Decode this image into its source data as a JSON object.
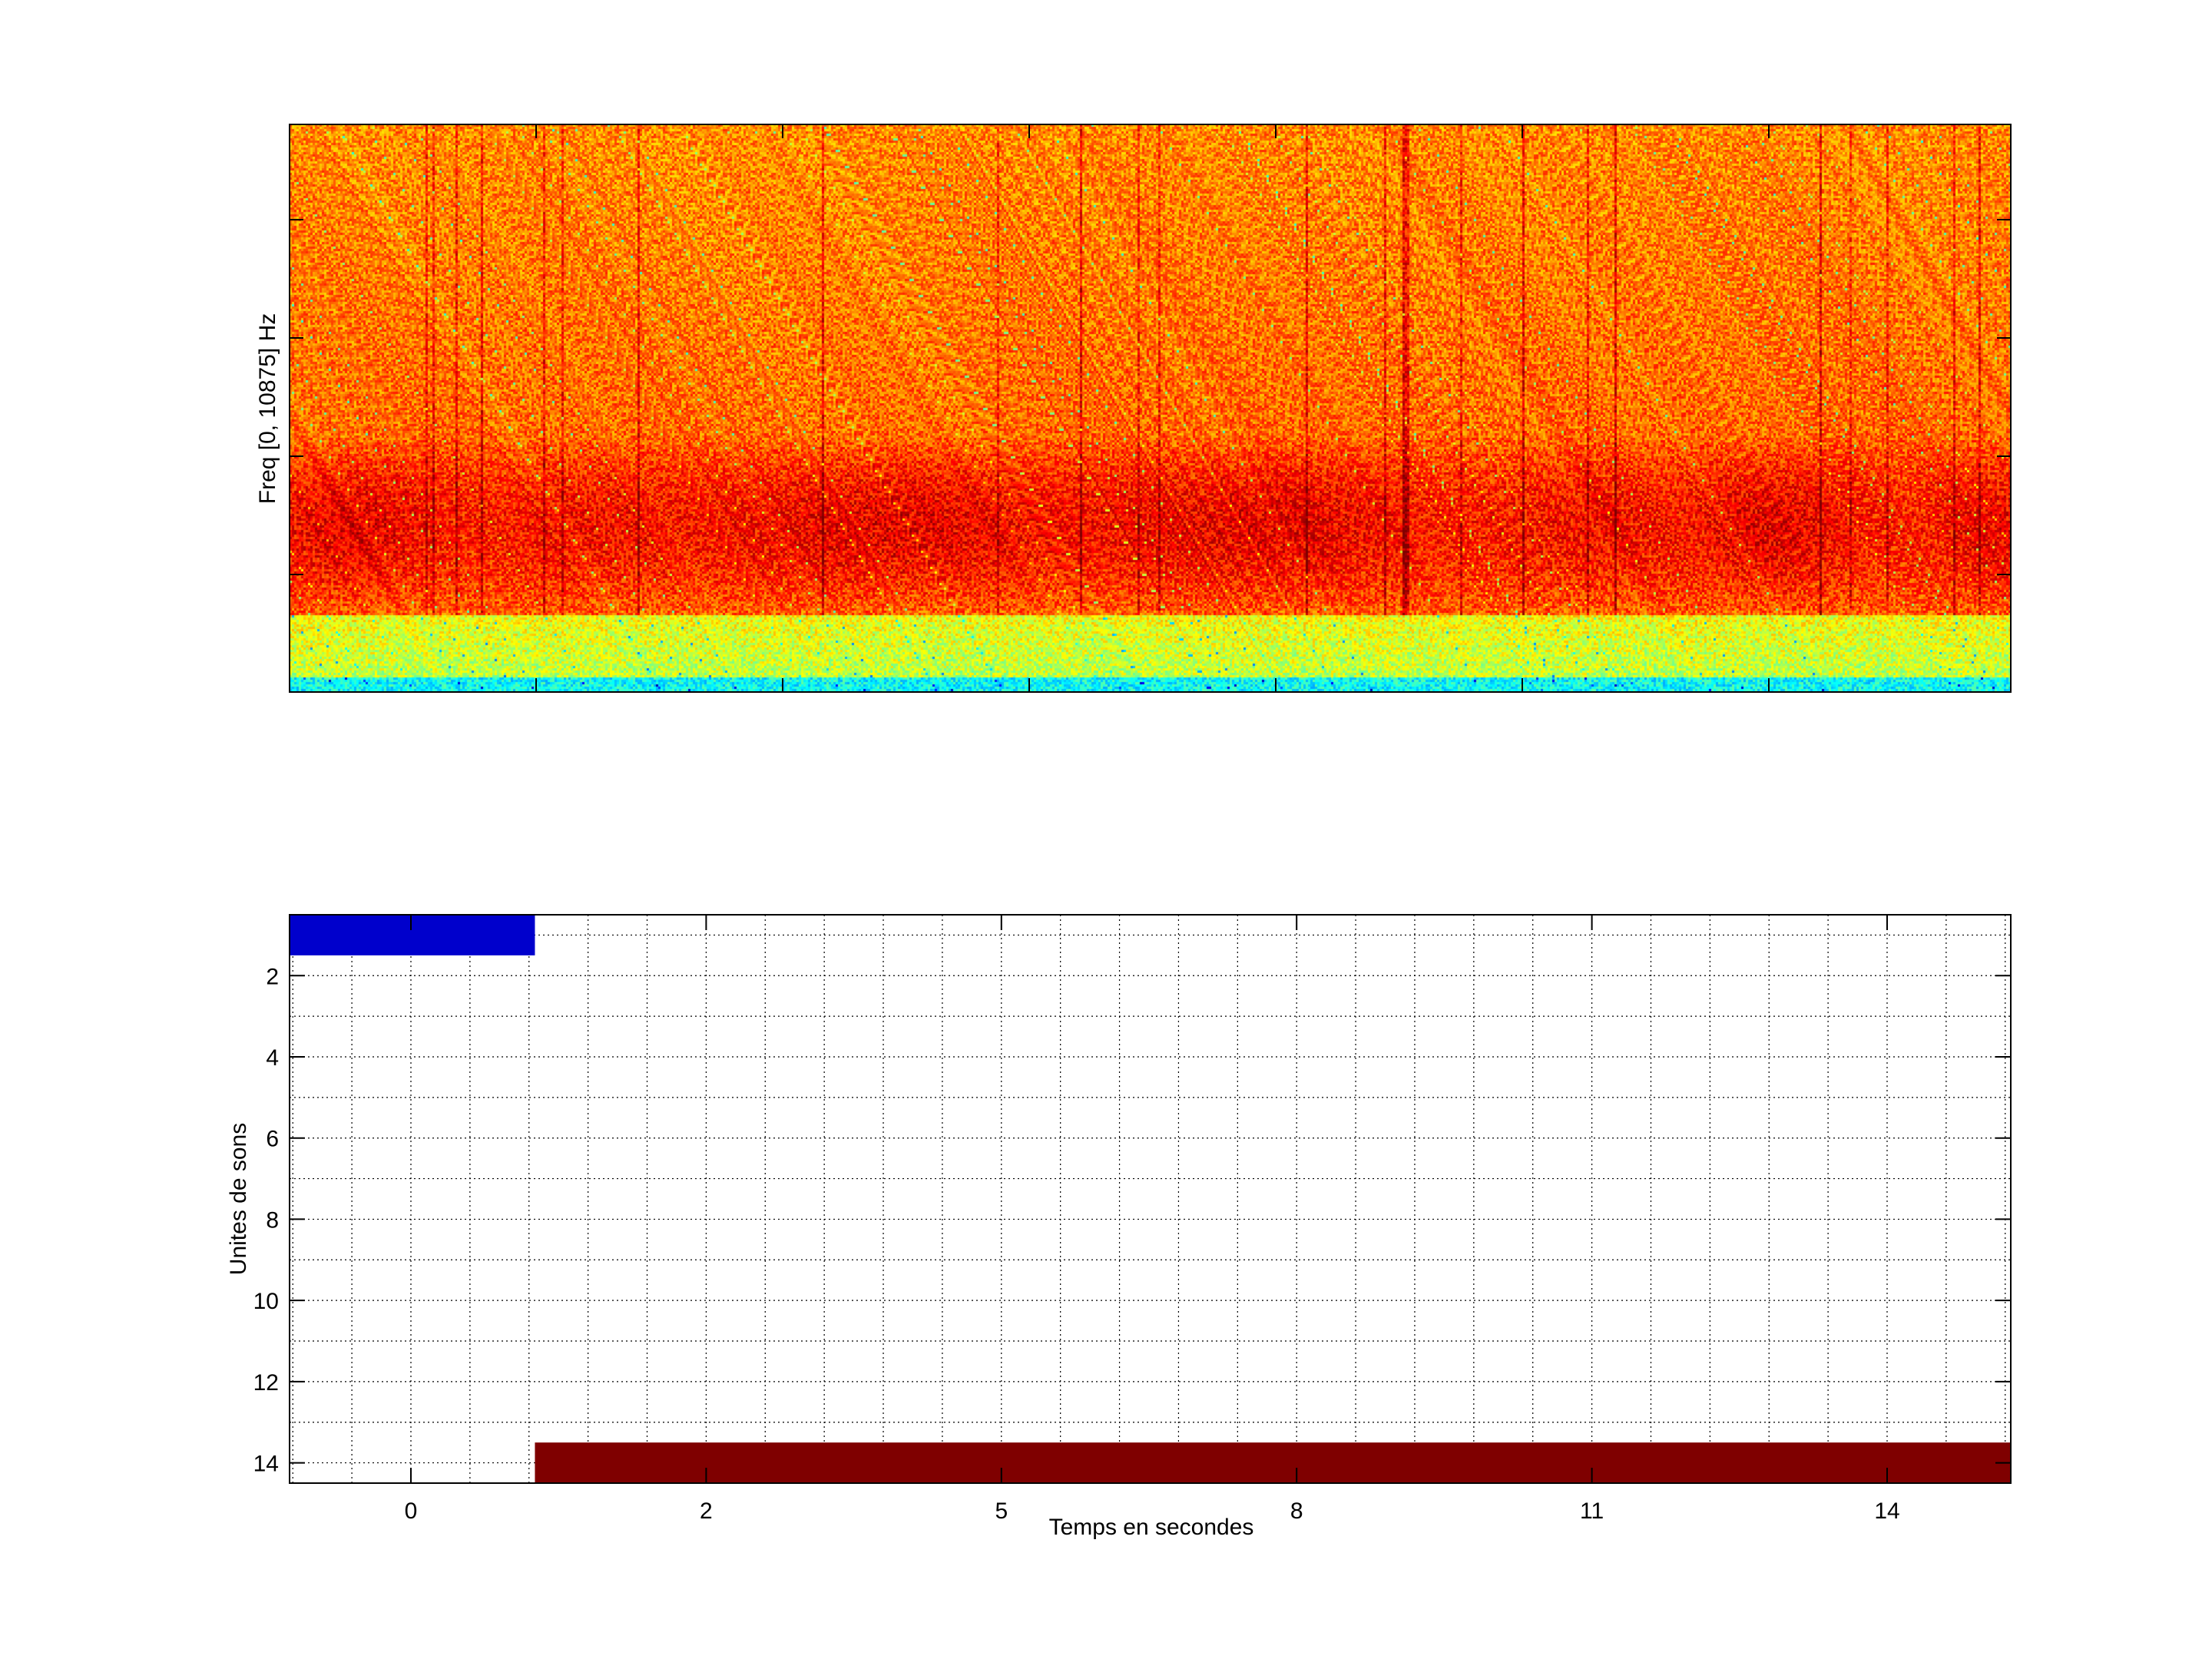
{
  "chart_data": [
    {
      "type": "heatmap",
      "ylabel": "Freq [0, 10875] Hz",
      "xlabel": "",
      "ylim": [
        0,
        10875
      ],
      "colormap": "jet",
      "x_tick_labels": [],
      "y_tick_labels": []
    },
    {
      "type": "bar",
      "orientation": "horizontal-segments",
      "xlabel": "Temps en secondes",
      "ylabel": "Unites de sons",
      "x_tick_values": [
        0,
        2,
        5,
        8,
        11,
        14
      ],
      "x_tick_labels": [
        "0",
        "2",
        "5",
        "8",
        "11",
        "14"
      ],
      "y_tick_labels": [
        "2",
        "4",
        "6",
        "8",
        "10",
        "12",
        "14"
      ],
      "xlim": [
        -0.83,
        15.26
      ],
      "ylim": [
        0.5,
        14.5
      ],
      "y_reversed": true,
      "grid": true,
      "segments": [
        {
          "unit": 1,
          "start": -0.83,
          "end": 0.84,
          "color": "#0000CC"
        },
        {
          "unit": 14,
          "start": 0.84,
          "end": 15.26,
          "color": "#7F0000"
        }
      ]
    }
  ]
}
